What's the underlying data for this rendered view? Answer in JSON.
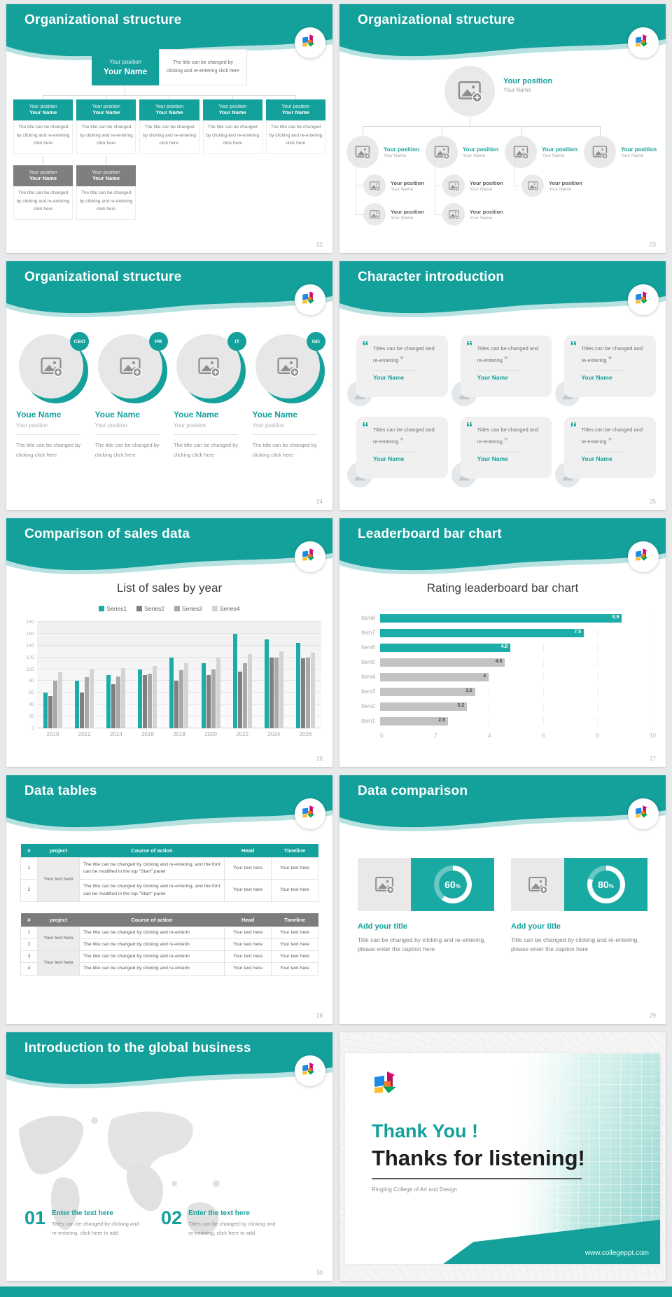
{
  "colors": {
    "accent": "#14a09b",
    "chart_teal": "#1cada8",
    "series_dark_gray": "#7f7f7f",
    "series_mid_gray": "#a9a9a9",
    "series_light_gray": "#d4d4d4",
    "leader_gray": "#c3c3c3"
  },
  "slides": {
    "org_boxes": {
      "title": "Organizational structure",
      "page": "22",
      "root": {
        "position": "Your position",
        "name": "Your Name",
        "note": "The title can be changed by clicking and re-entering click here"
      },
      "level2": [
        {
          "position": "Your position",
          "name": "Your Name",
          "note": "The title can be changed by clicking and re-entering click here"
        },
        {
          "position": "Your position",
          "name": "Your Name",
          "note": "The title can be changed by clicking and re-entering click here"
        },
        {
          "position": "Your position",
          "name": "Your Name",
          "note": "The title can be changed by clicking and re-entering click here."
        },
        {
          "position": "Your position",
          "name": "Your Name",
          "note": "The title can be changed by clicking and re-entering click here"
        },
        {
          "position": "Your position",
          "name": "Your Name",
          "note": "The title can be changed by clicking and re-entering click here"
        }
      ],
      "level3": [
        {
          "position": "Your position",
          "name": "Your Name",
          "note": "The title can be changed by clicking and re-entering click here"
        },
        {
          "position": "Your position",
          "name": "Your Name",
          "note": "The title can be changed by clicking and re-entering click here"
        }
      ]
    },
    "org_circles": {
      "title": "Organizational structure",
      "page": "23",
      "root": {
        "position": "Your position",
        "name": "Your Name"
      },
      "groups": [
        {
          "position": "Your position",
          "name": "Your Name",
          "children": [
            {
              "position": "Your position",
              "name": "Your Name"
            },
            {
              "position": "Your position",
              "name": "Your Name"
            }
          ]
        },
        {
          "position": "Your position",
          "name": "Your Name",
          "children": [
            {
              "position": "Your position",
              "name": "Your Name"
            },
            {
              "position": "Your position",
              "name": "Your Name"
            }
          ]
        },
        {
          "position": "Your position",
          "name": "Your Name",
          "children": [
            {
              "position": "Your position",
              "name": "Your Name"
            }
          ]
        },
        {
          "position": "Your position",
          "name": "Your Name",
          "children": []
        }
      ]
    },
    "org_people": {
      "title": "Organizational structure",
      "page": "24",
      "members": [
        {
          "badge": "CEO",
          "name": "Youe Name",
          "position": "Your position",
          "note": "The title can be changed by clicking click here"
        },
        {
          "badge": "PR",
          "name": "Youe Name",
          "position": "Your position",
          "note": "The title can be changed by clicking click here"
        },
        {
          "badge": "IT",
          "name": "Youe Name",
          "position": "Your position",
          "note": "The title can be changed by clicking click here"
        },
        {
          "badge": "GD",
          "name": "Youe Name",
          "position": "Your position",
          "note": "The title can be changed by clicking click here"
        }
      ]
    },
    "characters": {
      "title": "Character introduction",
      "page": "25",
      "cards": [
        {
          "quote": "Titles can be changed and re-entering",
          "name": "Your Name"
        },
        {
          "quote": "Titles can be changed and re-entering",
          "name": "Your Name"
        },
        {
          "quote": "Titles can be changed and re-entering",
          "name": "Your Name"
        },
        {
          "quote": "Titles can be changed and re-entering",
          "name": "Your Name"
        },
        {
          "quote": "Titles can be changed and re-entering",
          "name": "Your Name"
        },
        {
          "quote": "Titles can be changed and re-entering",
          "name": "Your Name"
        }
      ]
    },
    "sales": {
      "title": "Comparison of sales data",
      "page": "26"
    },
    "leaderboard": {
      "title": "Leaderboard bar chart",
      "page": "27"
    },
    "tables": {
      "title": "Data tables",
      "page": "28",
      "table1": {
        "columns": [
          "#",
          "project",
          "Course of action",
          "Head",
          "Timeline"
        ],
        "project_cells": [
          "Your text here"
        ],
        "rows": [
          {
            "num": "1",
            "action": "The title can be changed by clicking and re-entering, and the font can be modified in the top \"Start\" panel",
            "head": "Your text here",
            "timeline": "Your text here"
          },
          {
            "num": "2",
            "action": "The title can be changed by clicking and re-entering, and the font can be modified in the top \"Start\" panel",
            "head": "Your text here",
            "timeline": "Your text here"
          }
        ]
      },
      "table2": {
        "columns": [
          "#",
          "project",
          "Course of action",
          "Head",
          "Timeline"
        ],
        "project_cells": [
          "Your text here",
          "Your text here"
        ],
        "rows": [
          {
            "num": "1",
            "action": "The title can be changed by clicking and re-enterin",
            "head": "Your text here",
            "timeline": "Your text here"
          },
          {
            "num": "2",
            "action": "The title can be changed by clicking and re-enterin",
            "head": "Your text here",
            "timeline": "Your text here"
          },
          {
            "num": "3",
            "action": "The title can be changed by clicking and re-enterin",
            "head": "Your text here",
            "timeline": "Your text here"
          },
          {
            "num": "4",
            "action": "The title can be changed by clicking and re-enterin",
            "head": "Your text here",
            "timeline": "Your text here"
          }
        ]
      }
    },
    "comparison": {
      "title": "Data comparison",
      "page": "29",
      "items": [
        {
          "percent": 60,
          "heading": "Add your title",
          "body": "Title can be changed by clicking and re-entering, please enter the caption here"
        },
        {
          "percent": 80,
          "heading": "Add your title",
          "body": "Title can be changed by clicking and re-entering, please enter the caption here"
        }
      ]
    },
    "global": {
      "title": "Introduction to the global business",
      "page": "30",
      "items": [
        {
          "num": "01",
          "heading": "Enter the text here",
          "body": "Titles can be changed by clicking and re-entering, click here to add"
        },
        {
          "num": "02",
          "heading": "Enter the text here",
          "body": "Titles can be changed by clicking and re-entering, click here to add"
        }
      ]
    },
    "thanks": {
      "title": "Thank You !",
      "subtitle": "Thanks for listening!",
      "org": "Ringling College of Art and Design",
      "url": "www.collegeppt.com"
    }
  },
  "chart_data": [
    {
      "type": "bar",
      "title": "List of sales by year",
      "categories": [
        "2010",
        "2012",
        "2014",
        "2016",
        "2018",
        "2020",
        "2022",
        "2024",
        "2026"
      ],
      "series": [
        {
          "name": "Series1",
          "color": "#1cada8",
          "values": [
            60,
            80,
            90,
            100,
            120,
            110,
            160,
            150,
            145
          ]
        },
        {
          "name": "Series2",
          "color": "#7f7f7f",
          "values": [
            55,
            60,
            75,
            90,
            80,
            90,
            96,
            120,
            118
          ]
        },
        {
          "name": "Series3",
          "color": "#a9a9a9",
          "values": [
            80,
            86,
            88,
            92,
            98,
            100,
            110,
            120,
            120
          ]
        },
        {
          "name": "Series4",
          "color": "#d4d4d4",
          "values": [
            95,
            99,
            102,
            105,
            110,
            120,
            126,
            130,
            128
          ]
        }
      ],
      "ylim": [
        0,
        180
      ],
      "yticks": [
        0,
        20,
        40,
        60,
        80,
        100,
        120,
        140,
        160,
        180
      ],
      "grid": true,
      "legend_position": "top"
    },
    {
      "type": "bar-horizontal",
      "title": "Rating leaderboard bar chart",
      "categories": [
        "Item8",
        "Item7",
        "Item6",
        "Item5",
        "Item4",
        "Item3",
        "Item2",
        "Item1"
      ],
      "values": [
        8.9,
        7.5,
        4.8,
        4.6,
        4,
        3.5,
        3.2,
        2.5
      ],
      "bar_colors": [
        "#1cada8",
        "#1cada8",
        "#1cada8",
        "#c3c3c3",
        "#c3c3c3",
        "#c3c3c3",
        "#c3c3c3",
        "#c3c3c3"
      ],
      "xlim": [
        0,
        10
      ],
      "xticks": [
        0,
        2,
        4,
        6,
        8,
        10
      ],
      "value_labels": true,
      "grid": true
    }
  ]
}
